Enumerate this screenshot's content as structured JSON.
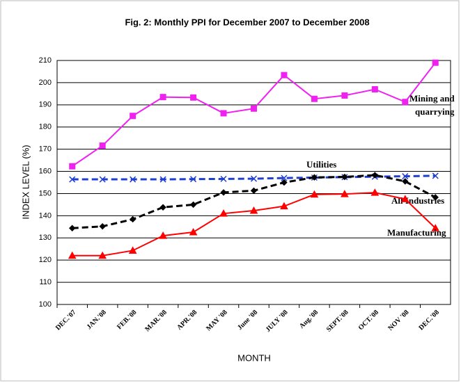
{
  "chart_data": {
    "type": "line",
    "title": "Fig. 2:  Monthly PPI for December 2007 to December 2008",
    "x_label": "MONTH",
    "y_label": "INDEX LEVEL (%)",
    "categories": [
      "DEC.'07",
      "JAN.'08",
      "FEB.'08",
      "MAR.'08",
      "APR.'08",
      "MAY '08",
      "June '08",
      "JULY '08",
      "Aug.'08",
      "SEPT.'08",
      "OCT.'08",
      "NOV '08",
      "DEC.'08"
    ],
    "series": [
      {
        "name": "Mining and quarrying",
        "color": "#f020f0",
        "marker": "square",
        "dashed": false,
        "values": [
          162.3,
          171.6,
          185,
          193.5,
          193.3,
          186.2,
          188.3,
          203.4,
          192.7,
          194.2,
          197,
          191.3,
          209
        ]
      },
      {
        "name": "Utilities",
        "color": "#1f3fd0",
        "marker": "x",
        "dashed": true,
        "values": [
          156.4,
          156.4,
          156.4,
          156.4,
          156.5,
          156.6,
          156.7,
          157,
          157.2,
          157.4,
          157.6,
          157.8,
          158
        ]
      },
      {
        "name": "All Industries",
        "color": "#000000",
        "marker": "diamond",
        "dashed": true,
        "values": [
          134.4,
          135.2,
          138.4,
          143.8,
          145,
          150.5,
          151.3,
          155,
          157.3,
          157.5,
          158.3,
          155.5,
          148.3
        ]
      },
      {
        "name": "Manufacturing",
        "color": "#ff0000",
        "marker": "triangle",
        "dashed": false,
        "values": [
          122,
          122,
          124.3,
          131,
          132.6,
          141,
          142.3,
          144.3,
          149.6,
          149.8,
          150.4,
          147.5,
          134.4
        ]
      }
    ],
    "ylim": [
      100,
      210
    ],
    "yticks": [
      100,
      110,
      120,
      130,
      140,
      150,
      160,
      170,
      180,
      190,
      200,
      210
    ],
    "grid": true
  }
}
